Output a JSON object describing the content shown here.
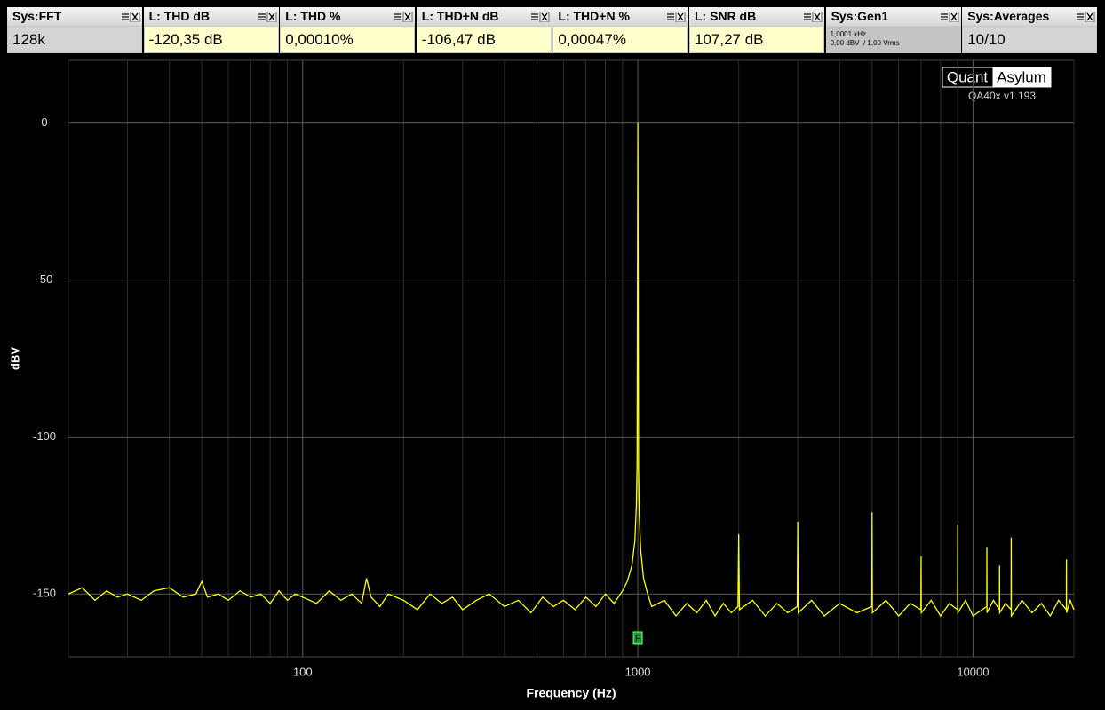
{
  "widgets": [
    {
      "title": "Sys:FFT",
      "value": "128k"
    },
    {
      "title": "L: THD dB",
      "value": "-120,35 dB"
    },
    {
      "title": "L: THD %",
      "value": "0,00010%"
    },
    {
      "title": "L: THD+N dB",
      "value": "-106,47 dB"
    },
    {
      "title": "L: THD+N %",
      "value": "0,00047%"
    },
    {
      "title": "L: SNR dB",
      "value": "107,27 dB"
    },
    {
      "title": "Sys:Gen1",
      "lines": [
        "1,0001 kHz",
        "0,00 dBV  / 1,00 Vrms"
      ]
    },
    {
      "title": "Sys:Averages",
      "value": "10/10"
    }
  ],
  "logo": {
    "left": "Quant",
    "right": "Asylum",
    "version": "QA40x v1.193"
  },
  "chart_data": {
    "type": "line",
    "xlabel": "Frequency (Hz)",
    "ylabel": "dBV",
    "xscale": "log",
    "grid": true,
    "xlim": [
      20,
      20000
    ],
    "ylim": [
      -170,
      20
    ],
    "xticks": [
      100,
      1000,
      10000
    ],
    "x_minor_ticks": [
      20,
      30,
      40,
      50,
      60,
      70,
      80,
      90,
      200,
      300,
      400,
      500,
      600,
      700,
      800,
      900,
      2000,
      3000,
      4000,
      5000,
      6000,
      7000,
      8000,
      9000,
      20000
    ],
    "yticks": [
      -150,
      -100,
      -50,
      0
    ],
    "markers": [
      {
        "label": "F",
        "x": 1000
      }
    ],
    "x": [
      20,
      22,
      24,
      26,
      28,
      30,
      33,
      36,
      40,
      44,
      48,
      50,
      52,
      56,
      60,
      65,
      70,
      75,
      80,
      85,
      90,
      95,
      100,
      110,
      120,
      130,
      140,
      150,
      155,
      160,
      170,
      180,
      200,
      220,
      240,
      260,
      280,
      300,
      330,
      360,
      400,
      440,
      480,
      520,
      560,
      600,
      650,
      700,
      750,
      800,
      850,
      900,
      930,
      960,
      980,
      990,
      995,
      1000,
      1005,
      1010,
      1020,
      1040,
      1070,
      1100,
      1200,
      1300,
      1400,
      1500,
      1600,
      1700,
      1800,
      1900,
      1990,
      2000,
      2010,
      2200,
      2400,
      2600,
      2800,
      2990,
      3000,
      3010,
      3300,
      3600,
      4000,
      4500,
      4990,
      5000,
      5010,
      5500,
      6000,
      6500,
      6990,
      7000,
      7010,
      7500,
      8000,
      8500,
      8990,
      9000,
      9010,
      9500,
      10000,
      10990,
      11000,
      11010,
      11500,
      11990,
      12000,
      12010,
      12500,
      12990,
      13000,
      13010,
      14000,
      15000,
      16000,
      17000,
      18000,
      18990,
      19000,
      19010,
      19500,
      20000
    ],
    "series": [
      {
        "color": "#ffff00",
        "values": [
          -150,
          -148,
          -152,
          -149,
          -151,
          -150,
          -152,
          -149,
          -148,
          -151,
          -150,
          -146,
          -151,
          -150,
          -152,
          -149,
          -151,
          -150,
          -153,
          -149,
          -152,
          -150,
          -151,
          -153,
          -149,
          -152,
          -150,
          -153,
          -145,
          -151,
          -154,
          -150,
          -152,
          -155,
          -150,
          -153,
          -151,
          -155,
          -152,
          -150,
          -154,
          -152,
          -156,
          -151,
          -154,
          -152,
          -155,
          -151,
          -154,
          -150,
          -153,
          -149,
          -146,
          -141,
          -133,
          -122,
          -108,
          0,
          -110,
          -125,
          -136,
          -145,
          -150,
          -154,
          -152,
          -157,
          -153,
          -156,
          -152,
          -157,
          -153,
          -156,
          -154,
          -131,
          -155,
          -152,
          -157,
          -153,
          -156,
          -154,
          -127,
          -156,
          -152,
          -157,
          -153,
          -156,
          -154,
          -124,
          -156,
          -152,
          -157,
          -153,
          -155,
          -138,
          -156,
          -152,
          -157,
          -153,
          -155,
          -128,
          -156,
          -152,
          -157,
          -154,
          -135,
          -156,
          -152,
          -155,
          -141,
          -156,
          -153,
          -155,
          -132,
          -157,
          -152,
          -156,
          -153,
          -157,
          -152,
          -155,
          -139,
          -156,
          -152,
          -155
        ]
      }
    ]
  }
}
